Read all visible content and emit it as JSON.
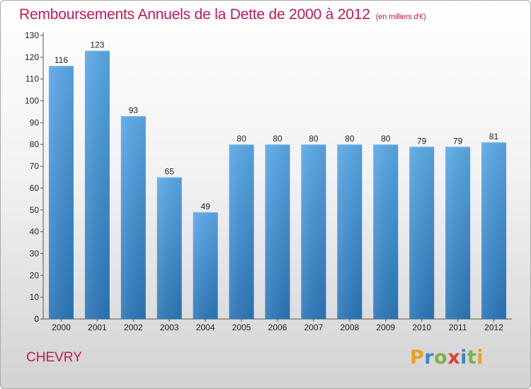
{
  "header": {
    "title": "Remboursements Annuels de la Dette de 2000 à 2012",
    "subtitle": "(en milliers d'€)"
  },
  "footer": {
    "city": "CHEVRY",
    "logo_letters": [
      "P",
      "r",
      "o",
      "x",
      "i",
      "t",
      "i"
    ],
    "logo_colors": [
      "#e8a21a",
      "#3d86c6",
      "#7cb342",
      "#e53935",
      "#3d86c6",
      "#7cb342",
      "#e8a21a"
    ]
  },
  "colors": {
    "bar_top": "#5aa9e6",
    "bar_bottom": "#2a77b8",
    "accent": "#c2185b"
  },
  "chart_data": {
    "type": "bar",
    "title": "Remboursements Annuels de la Dette de 2000 à 2012",
    "xlabel": "",
    "ylabel": "",
    "categories": [
      "2000",
      "2001",
      "2002",
      "2003",
      "2004",
      "2005",
      "2006",
      "2007",
      "2008",
      "2009",
      "2010",
      "2011",
      "2012"
    ],
    "values": [
      116,
      123,
      93,
      65,
      49,
      80,
      80,
      80,
      80,
      80,
      79,
      79,
      81
    ],
    "ylim": [
      0,
      130
    ],
    "yticks": [
      0,
      10,
      20,
      30,
      40,
      50,
      60,
      70,
      80,
      90,
      100,
      110,
      120,
      130
    ],
    "grid": false,
    "legend": "none"
  }
}
